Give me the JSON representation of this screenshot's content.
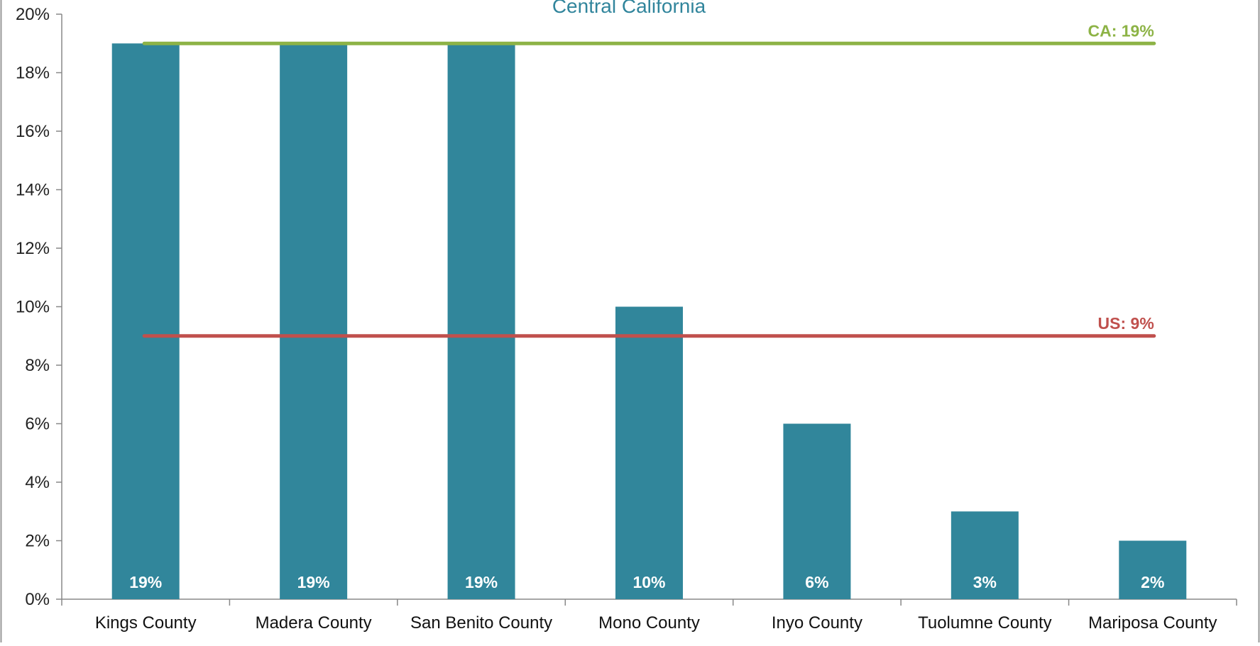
{
  "chart_data": {
    "type": "bar",
    "title": "Central California",
    "categories": [
      "Kings County",
      "Madera County",
      "San Benito County",
      "Mono County",
      "Inyo County",
      "Tuolumne County",
      "Mariposa County"
    ],
    "values": [
      19,
      19,
      19,
      10,
      6,
      3,
      2
    ],
    "data_labels": [
      "19%",
      "19%",
      "19%",
      "10%",
      "6%",
      "3%",
      "2%"
    ],
    "ylim": [
      0,
      20
    ],
    "yticks": [
      0,
      2,
      4,
      6,
      8,
      10,
      12,
      14,
      16,
      18,
      20
    ],
    "ytick_labels": [
      "0%",
      "2%",
      "4%",
      "6%",
      "8%",
      "10%",
      "12%",
      "14%",
      "16%",
      "18%",
      "20%"
    ],
    "xlabel": "",
    "ylabel": "",
    "grid": false,
    "reference_lines": [
      {
        "label": "CA: 19%",
        "value": 19,
        "color": "#8db346"
      },
      {
        "label": "US: 9%",
        "value": 9,
        "color": "#c0504d"
      }
    ],
    "colors": {
      "bar": "#31869b",
      "title": "#31859c",
      "axis": "#888888"
    }
  }
}
